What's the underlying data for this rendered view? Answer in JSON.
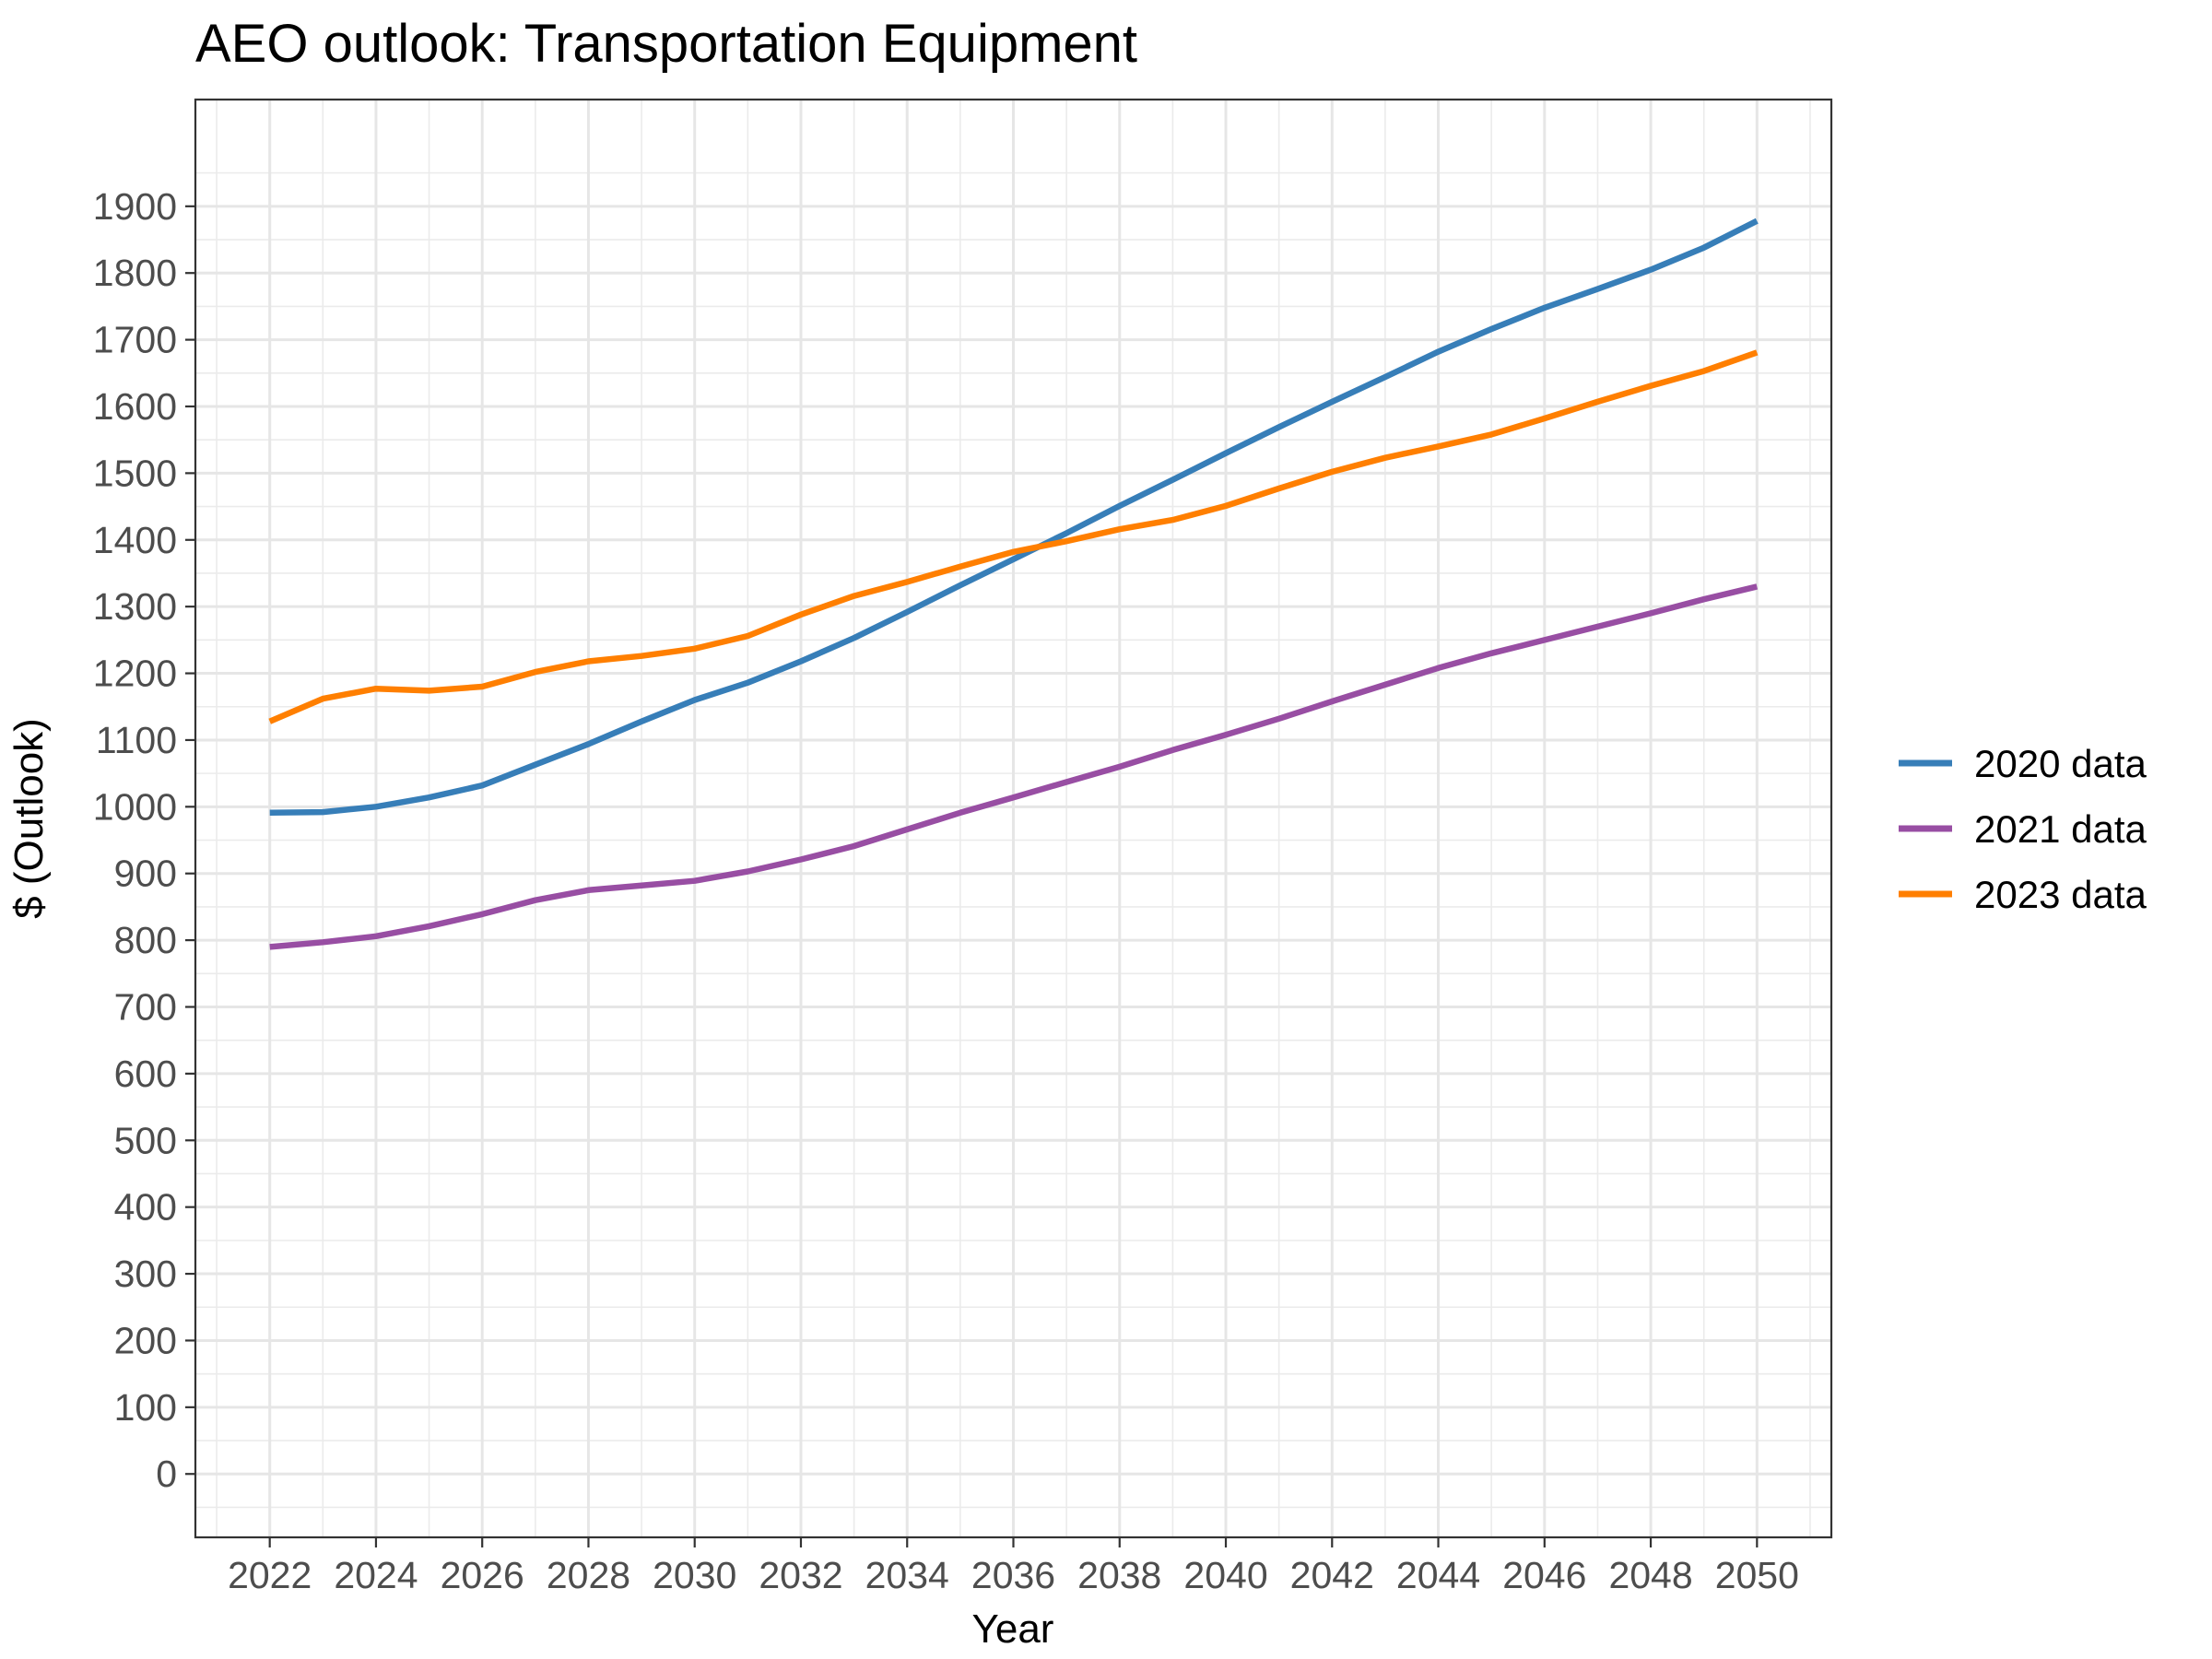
{
  "chart_data": {
    "type": "line",
    "title": "AEO outlook: Transportation Equipment",
    "xlabel": "Year",
    "ylabel": "$ (Outlook)",
    "xlim": [
      2020.6,
      2051.4
    ],
    "ylim": [
      -95,
      2060
    ],
    "x_ticks": [
      2022,
      2024,
      2026,
      2028,
      2030,
      2032,
      2034,
      2036,
      2038,
      2040,
      2042,
      2044,
      2046,
      2048,
      2050
    ],
    "y_ticks": [
      0,
      100,
      200,
      300,
      400,
      500,
      600,
      700,
      800,
      900,
      1000,
      1100,
      1200,
      1300,
      1400,
      1500,
      1600,
      1700,
      1800,
      1900
    ],
    "grid": true,
    "legend_position": "right",
    "x": [
      2022,
      2023,
      2024,
      2025,
      2026,
      2027,
      2028,
      2029,
      2030,
      2031,
      2032,
      2033,
      2034,
      2035,
      2036,
      2037,
      2038,
      2039,
      2040,
      2041,
      2042,
      2043,
      2044,
      2045,
      2046,
      2047,
      2048,
      2049,
      2050
    ],
    "series": [
      {
        "name": "2020 data",
        "color": "#377eb8",
        "values": [
          991,
          992,
          1000,
          1014,
          1032,
          1063,
          1094,
          1128,
          1160,
          1186,
          1218,
          1253,
          1292,
          1332,
          1371,
          1410,
          1451,
          1490,
          1530,
          1569,
          1607,
          1644,
          1682,
          1716,
          1748,
          1776,
          1805,
          1838,
          1878
        ]
      },
      {
        "name": "2021 data",
        "color": "#984ea3",
        "values": [
          790,
          797,
          806,
          821,
          839,
          860,
          875,
          882,
          889,
          903,
          921,
          941,
          966,
          991,
          1014,
          1037,
          1060,
          1085,
          1108,
          1132,
          1158,
          1183,
          1208,
          1230,
          1250,
          1270,
          1290,
          1311,
          1330
        ]
      },
      {
        "name": "2023 data",
        "color": "#ff7f00",
        "values": [
          1128,
          1162,
          1177,
          1174,
          1180,
          1202,
          1218,
          1226,
          1237,
          1256,
          1288,
          1316,
          1337,
          1360,
          1382,
          1398,
          1416,
          1430,
          1451,
          1477,
          1502,
          1523,
          1540,
          1558,
          1582,
          1607,
          1631,
          1653,
          1681
        ]
      }
    ]
  }
}
